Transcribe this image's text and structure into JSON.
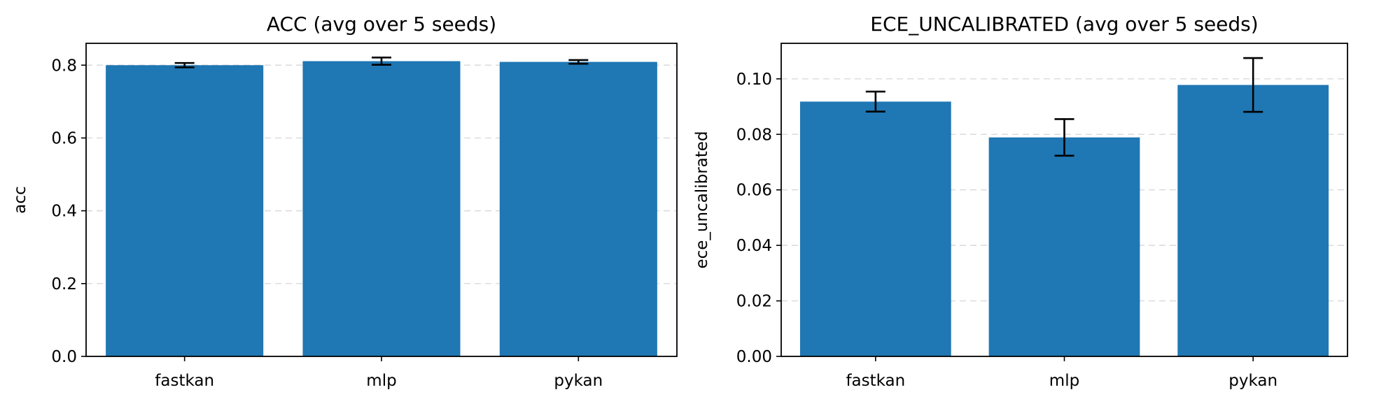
{
  "chart_data": [
    {
      "type": "bar",
      "title": "ACC (avg over 5 seeds)",
      "xlabel": "",
      "ylabel": "acc",
      "categories": [
        "fastkan",
        "mlp",
        "pykan"
      ],
      "values": [
        0.8,
        0.811,
        0.809
      ],
      "errors": [
        0.006,
        0.01,
        0.005
      ],
      "ylim": [
        0,
        0.86
      ],
      "yticks": [
        0.0,
        0.2,
        0.4,
        0.6,
        0.8
      ],
      "ytick_labels": [
        "0.0",
        "0.2",
        "0.4",
        "0.6",
        "0.8"
      ],
      "grid": "y, dashed",
      "bar_color": "#1f77b4"
    },
    {
      "type": "bar",
      "title": "ECE_UNCALIBRATED (avg over 5 seeds)",
      "xlabel": "",
      "ylabel": "ece_uncalibrated",
      "categories": [
        "fastkan",
        "mlp",
        "pykan"
      ],
      "values": [
        0.0918,
        0.0789,
        0.0978
      ],
      "errors": [
        0.0036,
        0.0066,
        0.0097
      ],
      "ylim": [
        0,
        0.1128
      ],
      "yticks": [
        0.0,
        0.02,
        0.04,
        0.06,
        0.08,
        0.1
      ],
      "ytick_labels": [
        "0.00",
        "0.02",
        "0.04",
        "0.06",
        "0.08",
        "0.10"
      ],
      "grid": "y, dashed",
      "bar_color": "#1f77b4"
    }
  ]
}
